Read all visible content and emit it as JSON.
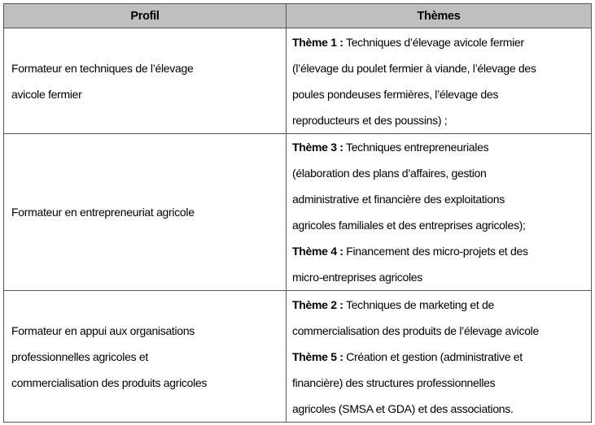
{
  "header": {
    "profil": "Profil",
    "themes": "Thèmes"
  },
  "rows": [
    {
      "profil": [
        "Formateur en techniques de l’élevage",
        "avicole fermier"
      ],
      "themes": [
        {
          "label": "Thème 1 :",
          "lines": [
            " Techniques d’élevage avicole fermier",
            "(l’élevage du poulet fermier à viande, l’élevage des",
            "poules pondeuses fermières, l’élevage des",
            "reproducteurs et des poussins) ;"
          ]
        }
      ]
    },
    {
      "profil": [
        "Formateur en entrepreneuriat agricole"
      ],
      "themes": [
        {
          "label": "Thème 3 :",
          "lines": [
            " Techniques entrepreneuriales",
            "(élaboration des plans d’affaires, gestion",
            "administrative et financière des exploitations",
            "agricoles familiales et des entreprises agricoles);"
          ]
        },
        {
          "label": "Thème 4 :",
          "lines": [
            " Financement des micro-projets et des",
            "micro-entreprises agricoles"
          ]
        }
      ]
    },
    {
      "profil": [
        "Formateur en appui aux organisations",
        "professionnelles agricoles et",
        "commercialisation des produits agricoles"
      ],
      "themes": [
        {
          "label": "Thème 2 :",
          "lines": [
            " Techniques de marketing et de",
            "commercialisation des produits de l’élevage avicole"
          ]
        },
        {
          "label": "Thème 5 :",
          "lines": [
            " Création et gestion (administrative et",
            "financière) des structures professionnelles",
            "agricoles (SMSA et GDA) et des associations."
          ]
        }
      ]
    }
  ]
}
